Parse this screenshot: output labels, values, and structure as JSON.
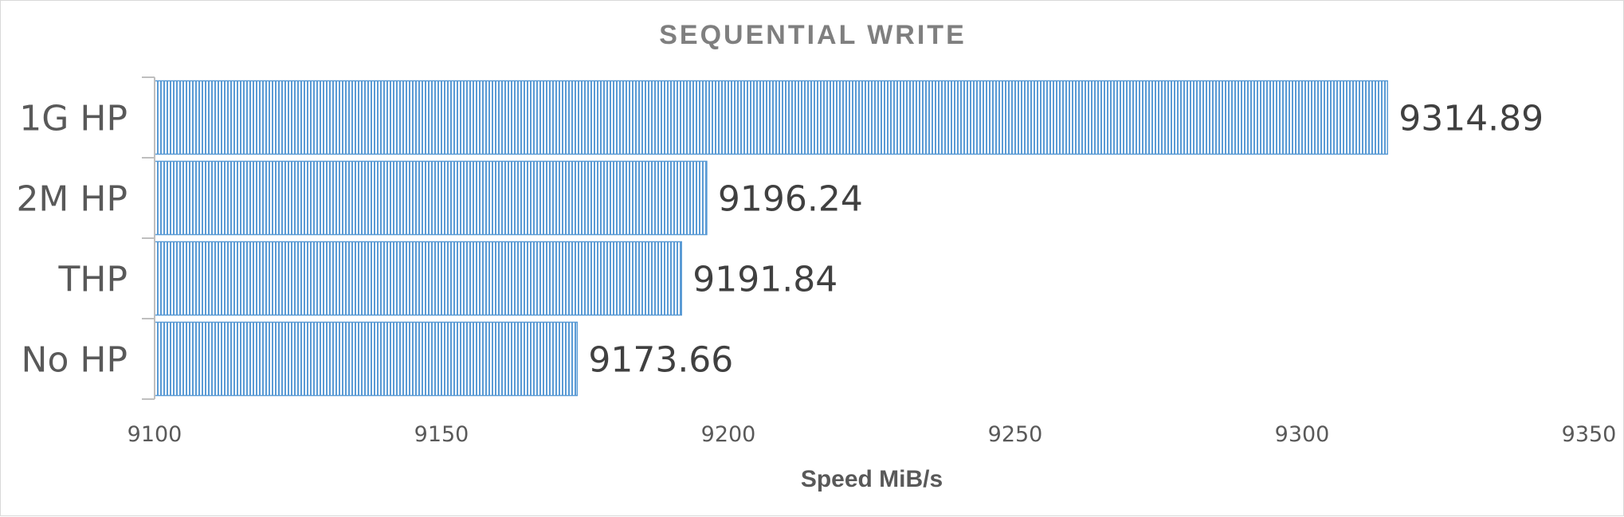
{
  "chart_data": {
    "type": "bar",
    "orientation": "horizontal",
    "title": "SEQUENTIAL WRITE",
    "xlabel": "Speed MiB/s",
    "ylabel": "",
    "categories": [
      "1G HP",
      "2M HP",
      "THP",
      "No HP"
    ],
    "values": [
      9314.89,
      9196.24,
      9191.84,
      9173.66
    ],
    "value_labels": [
      "9314.89",
      "9196.24",
      "9191.84",
      "9173.66"
    ],
    "xlim": [
      9100,
      9350
    ],
    "xticks": [
      9100,
      9150,
      9200,
      9250,
      9300,
      9350
    ],
    "xtick_labels": [
      "9100",
      "9150",
      "9200",
      "9250",
      "9300",
      "9350"
    ],
    "grid": false,
    "legend": "none",
    "bar_color": "#5b9bd5",
    "bar_fill_pattern": "vertical-stripes"
  }
}
